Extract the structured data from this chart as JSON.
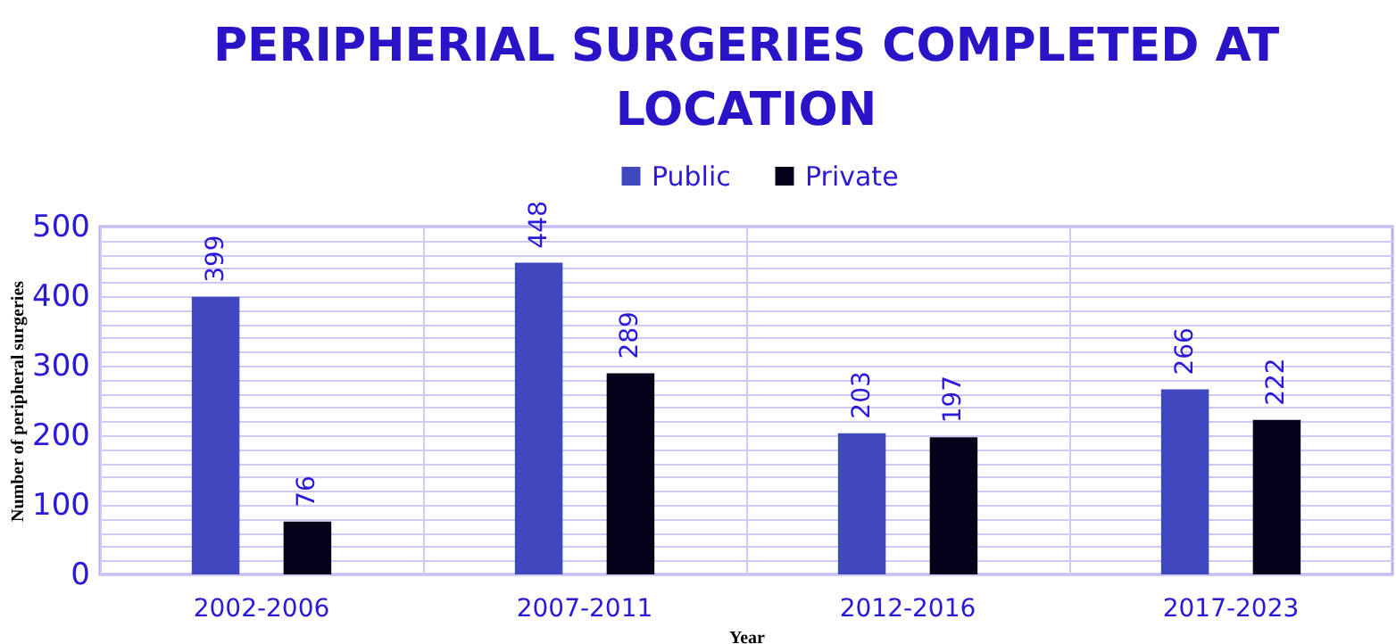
{
  "chart_data": {
    "type": "bar",
    "title": "PERIPHERIAL SURGERIES COMPLETED AT LOCATION",
    "xlabel": "Year",
    "ylabel": "Number of peripheral surgeries",
    "categories": [
      "2002-2006",
      "2007-2011",
      "2012-2016",
      "2017-2023"
    ],
    "series": [
      {
        "name": "Public",
        "color": "#3f48be",
        "values": [
          399,
          448,
          203,
          266
        ]
      },
      {
        "name": "Private",
        "color": "#05011a",
        "values": [
          76,
          289,
          197,
          222
        ]
      }
    ],
    "ylim": [
      0,
      500
    ],
    "yticks": [
      0,
      {
        "value": 20,
        "label": null
      },
      {
        "value": 40,
        "label": null
      },
      {
        "value": 60,
        "label": null
      },
      {
        "value": 80,
        "label": null
      },
      100,
      {
        "value": 120,
        "label": null
      },
      {
        "value": 140,
        "label": null
      },
      {
        "value": 160,
        "label": null
      },
      {
        "value": 180,
        "label": null
      },
      200,
      {
        "value": 220,
        "label": null
      },
      {
        "value": 240,
        "label": null
      },
      {
        "value": 260,
        "label": null
      },
      {
        "value": 280,
        "label": null
      },
      300,
      {
        "value": 320,
        "label": null
      },
      {
        "value": 340,
        "label": null
      },
      {
        "value": 360,
        "label": null
      },
      {
        "value": 380,
        "label": null
      },
      400,
      {
        "value": 420,
        "label": null
      },
      {
        "value": 440,
        "label": null
      },
      {
        "value": 460,
        "label": null
      },
      {
        "value": 480,
        "label": null
      },
      500
    ],
    "grid": true,
    "legend": "top",
    "data_labels": true
  }
}
